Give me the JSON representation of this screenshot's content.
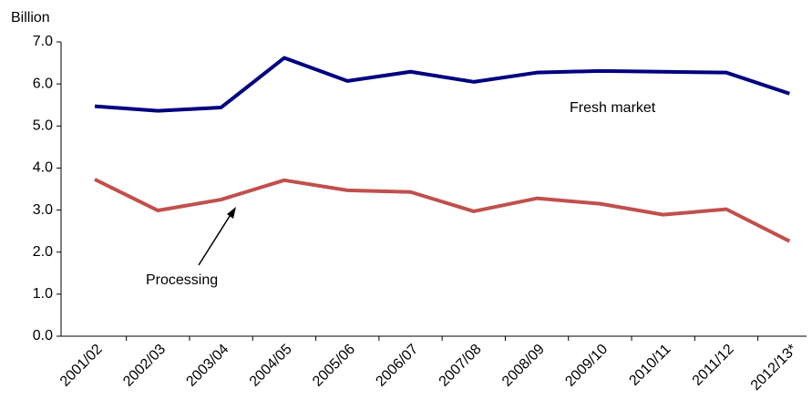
{
  "chart_data": {
    "type": "line",
    "y_axis_label": "Billion",
    "categories": [
      "2001/02",
      "2002/03",
      "2003/04",
      "2004/05",
      "2005/06",
      "2006/07",
      "2007/08",
      "2008/09",
      "2009/10",
      "2010/11",
      "2011/12",
      "2012/13*"
    ],
    "series": [
      {
        "name": "Fresh market",
        "color": "#000080",
        "values": [
          5.47,
          5.36,
          5.44,
          6.62,
          6.07,
          6.29,
          6.05,
          6.27,
          6.31,
          6.29,
          6.27,
          5.77
        ]
      },
      {
        "name": "Processing",
        "color": "#c0504d",
        "values": [
          3.73,
          2.99,
          3.25,
          3.71,
          3.47,
          3.43,
          2.97,
          3.28,
          3.15,
          2.89,
          3.02,
          2.26
        ]
      }
    ],
    "ylim": [
      0,
      7
    ],
    "yticks": [
      {
        "value": 0,
        "label": "0.0"
      },
      {
        "value": 1,
        "label": "1.0"
      },
      {
        "value": 2,
        "label": "2.0"
      },
      {
        "value": 3,
        "label": "3.0"
      },
      {
        "value": 4,
        "label": "4.0"
      },
      {
        "value": 5,
        "label": "5.0"
      },
      {
        "value": 6,
        "label": "6.0"
      },
      {
        "value": 7,
        "label": "7.0"
      }
    ],
    "grid": false
  }
}
